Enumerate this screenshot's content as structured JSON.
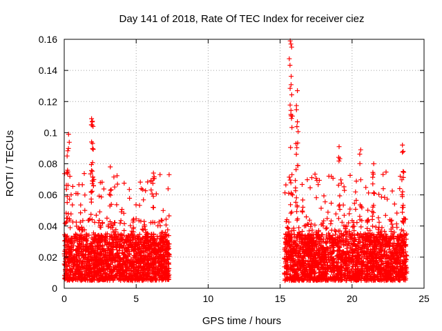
{
  "chart_data": {
    "type": "scatter",
    "title": "Day 141 of 2018, Rate Of TEC Index for receiver ciez",
    "xlabel": "GPS time / hours",
    "ylabel": "ROTI / TECUs",
    "xlim": [
      0,
      25
    ],
    "ylim": [
      0,
      0.16
    ],
    "xticks": [
      0,
      5,
      10,
      15,
      20,
      25
    ],
    "yticks": [
      0,
      0.02,
      0.04,
      0.06,
      0.08,
      0.1,
      0.12,
      0.14,
      0.16
    ],
    "xtick_labels": [
      "0",
      "5",
      "10",
      "15",
      "20",
      "25"
    ],
    "ytick_labels": [
      "0",
      "0.02",
      "0.04",
      "0.06",
      "0.08",
      "0.1",
      "0.12",
      "0.14",
      "0.16"
    ],
    "grid": true,
    "marker": "+",
    "color": "#ff0000",
    "series": [
      {
        "name": "ROTI",
        "segments": [
          {
            "x_start": 0.0,
            "x_end": 7.3
          },
          {
            "x_start": 15.3,
            "x_end": 23.8
          }
        ],
        "typical_range": [
          0.005,
          0.045
        ],
        "notable_points": [
          {
            "x": 0.2,
            "y": 0.085
          },
          {
            "x": 0.3,
            "y": 0.099
          },
          {
            "x": 1.9,
            "y": 0.109
          },
          {
            "x": 1.95,
            "y": 0.107
          },
          {
            "x": 2.0,
            "y": 0.104
          },
          {
            "x": 1.9,
            "y": 0.094
          },
          {
            "x": 3.2,
            "y": 0.078
          },
          {
            "x": 6.2,
            "y": 0.074
          },
          {
            "x": 15.7,
            "y": 0.159
          },
          {
            "x": 15.75,
            "y": 0.157
          },
          {
            "x": 15.8,
            "y": 0.155
          },
          {
            "x": 16.2,
            "y": 0.127
          },
          {
            "x": 16.2,
            "y": 0.107
          },
          {
            "x": 16.1,
            "y": 0.093
          },
          {
            "x": 19.1,
            "y": 0.091
          },
          {
            "x": 20.6,
            "y": 0.089
          },
          {
            "x": 21.5,
            "y": 0.08
          },
          {
            "x": 23.5,
            "y": 0.092
          },
          {
            "x": 23.55,
            "y": 0.088
          }
        ]
      }
    ]
  }
}
